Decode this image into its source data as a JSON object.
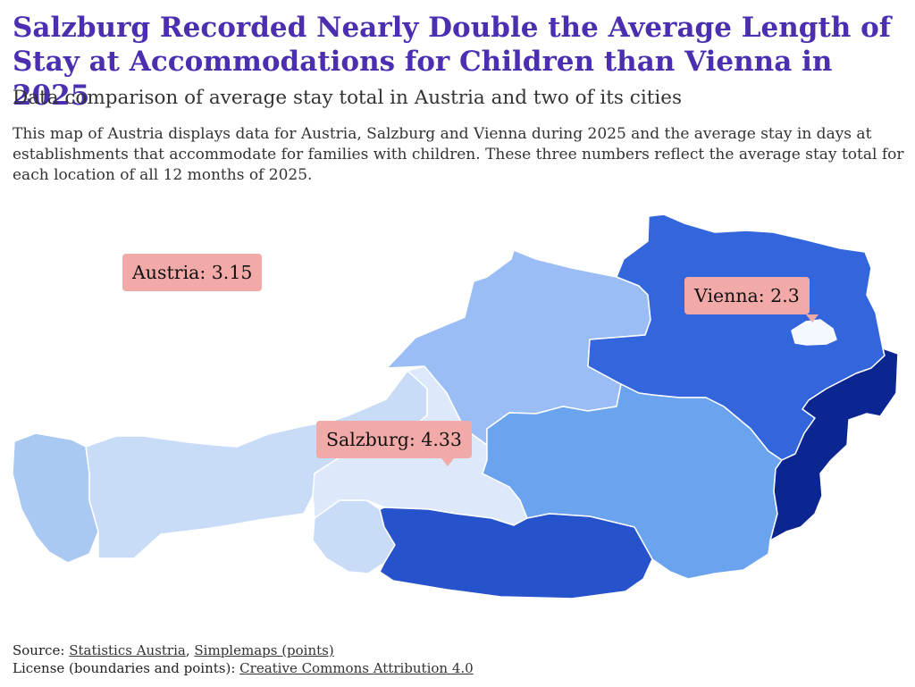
{
  "title": "Salzburg Recorded Nearly Double the Average Length of Stay at Accommodations for Children than Vienna in 2025",
  "subtitle": "Data comparison of average stay total in Austria and two of its cities",
  "description": "This map of Austria displays data for Austria, Salzburg and Vienna during 2025 and the average stay in days at establishments that accommodate for families with children. These three numbers reflect the average stay total for each location of all 12 months of 2025.",
  "labels": {
    "austria": "Austria: 3.15",
    "vienna": "Vienna: 2.3",
    "salzburg": "Salzburg: 4.33"
  },
  "values": {
    "austria": 3.15,
    "vienna": 2.3,
    "salzburg": 4.33
  },
  "colors": {
    "title": "#4b2fb0",
    "label_box": "#f2aaa8",
    "vorarlberg": "#a9c8f2",
    "tirol": "#c8dcf8",
    "east_tirol": "#c8dcf8",
    "salzburg": "#dde8fb",
    "upper_austria": "#99bdf4",
    "styria": "#6aa3ee",
    "carinthia": "#2653cc",
    "lower_austria": "#3366dd",
    "vienna": "#f4f8ff",
    "burgenland": "#0b2591"
  },
  "footer": {
    "source_prefix": "Source: ",
    "source_link_1": "Statistics Austria",
    "source_sep": ", ",
    "source_link_2": "Simplemaps (points)",
    "license_prefix": "License (boundaries and points): ",
    "license_link": "Creative Commons Attribution 4.0"
  }
}
